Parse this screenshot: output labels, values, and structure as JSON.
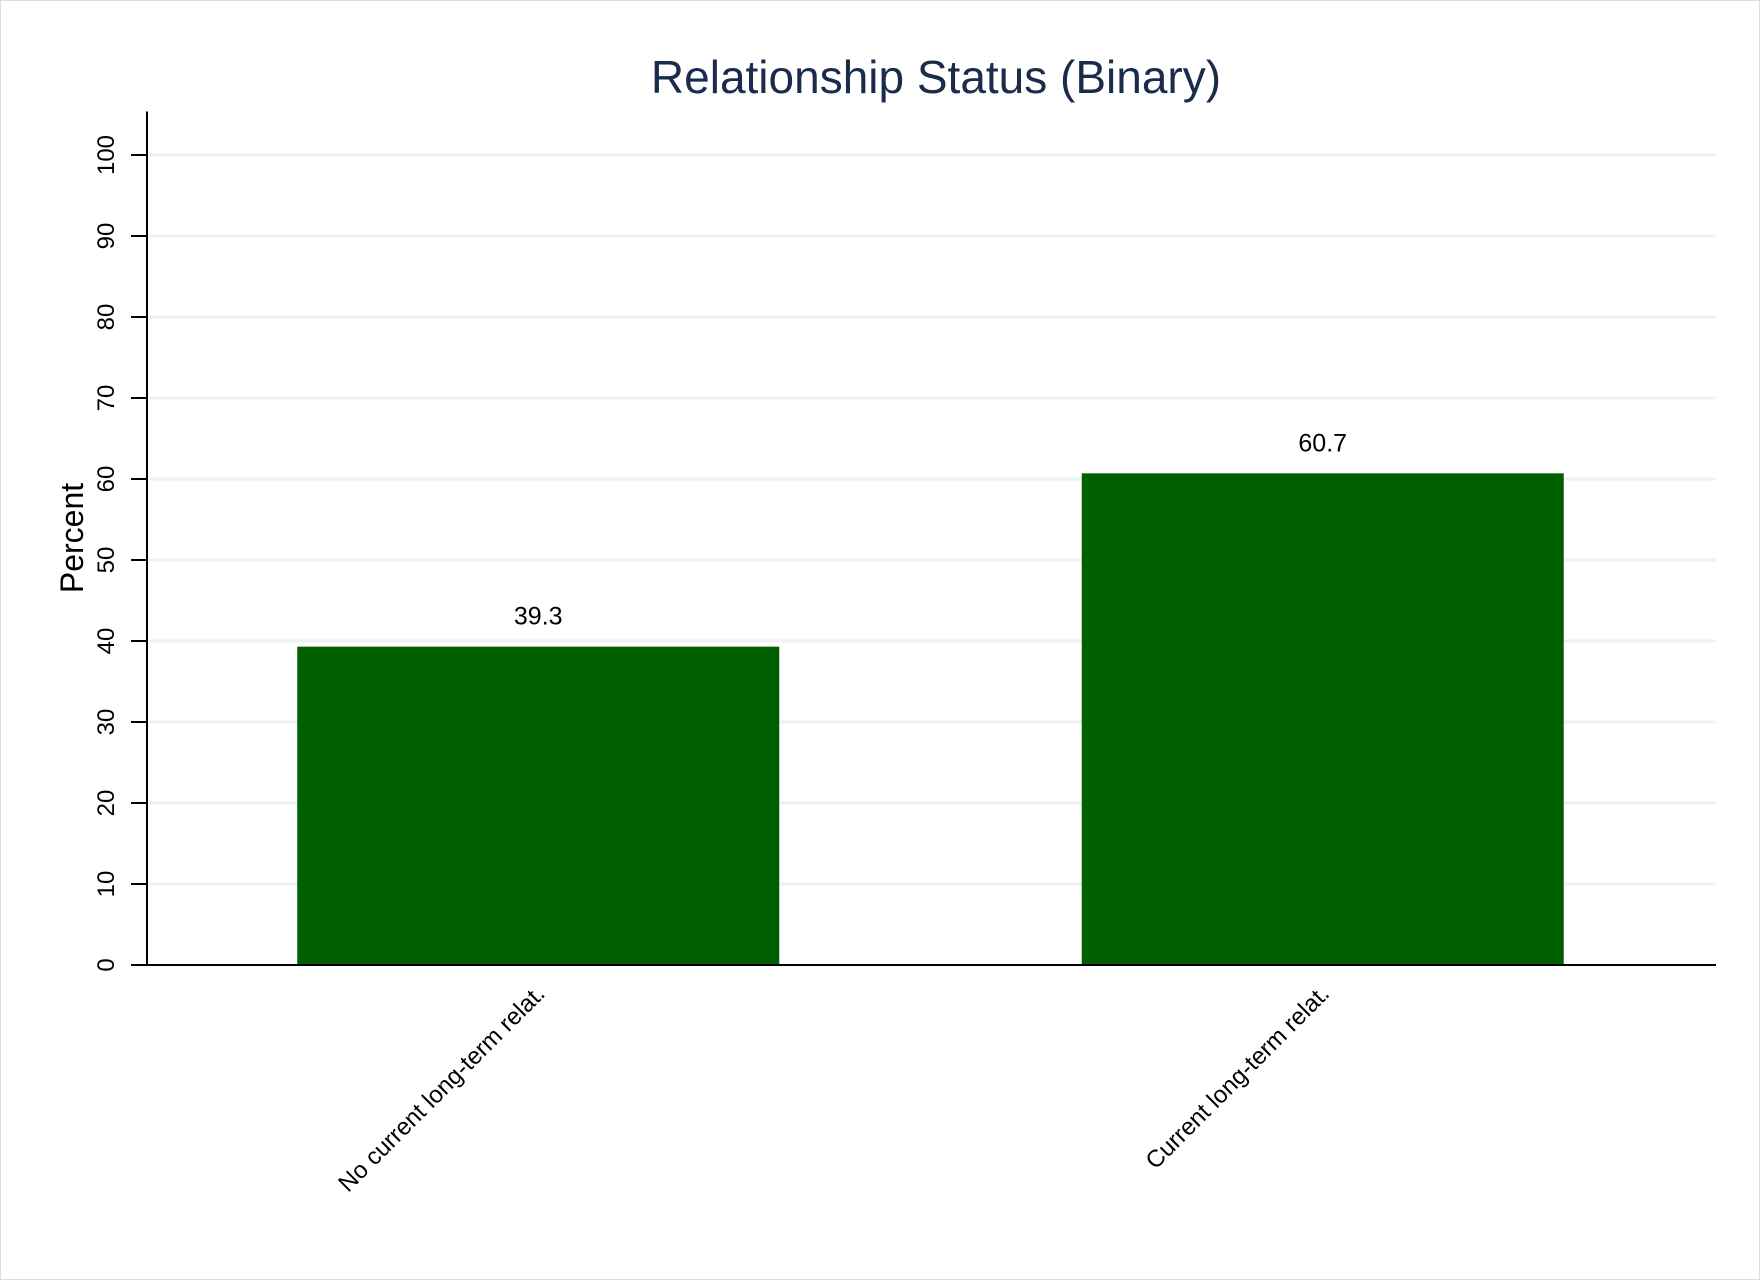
{
  "chart_data": {
    "type": "bar",
    "title": "Relationship Status (Binary)",
    "xlabel": "",
    "ylabel": "Percent",
    "categories": [
      "No current long-term relat.",
      "Current long-term relat."
    ],
    "values": [
      39.3,
      60.7
    ],
    "data_labels": [
      "39.3",
      "60.7"
    ],
    "ylim": [
      0,
      105
    ],
    "yticks": [
      0,
      10,
      20,
      30,
      40,
      50,
      60,
      70,
      80,
      90,
      100
    ],
    "ytick_labels": [
      "0",
      "10",
      "20",
      "30",
      "40",
      "50",
      "60",
      "70",
      "80",
      "90",
      "100"
    ],
    "grid": true,
    "legend": "none",
    "colors": {
      "bar": "#005f00",
      "grid": "#eaf2f3",
      "axis": "#000000",
      "title": "#1a2b4c"
    }
  }
}
